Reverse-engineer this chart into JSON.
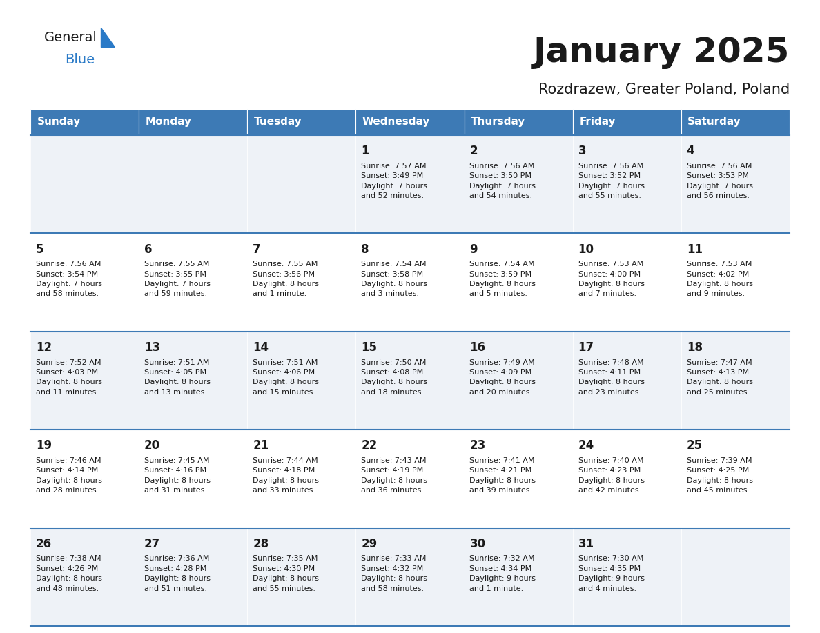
{
  "title": "January 2025",
  "subtitle": "Rozdrazew, Greater Poland, Poland",
  "header_bg": "#3d7ab5",
  "header_text_color": "#ffffff",
  "cell_bg_odd": "#eef2f7",
  "cell_bg_even": "#ffffff",
  "separator_color": "#3d7ab5",
  "text_color": "#1a1a1a",
  "day_headers": [
    "Sunday",
    "Monday",
    "Tuesday",
    "Wednesday",
    "Thursday",
    "Friday",
    "Saturday"
  ],
  "calendar": [
    [
      {
        "day": "",
        "info": ""
      },
      {
        "day": "",
        "info": ""
      },
      {
        "day": "",
        "info": ""
      },
      {
        "day": "1",
        "info": "Sunrise: 7:57 AM\nSunset: 3:49 PM\nDaylight: 7 hours\nand 52 minutes."
      },
      {
        "day": "2",
        "info": "Sunrise: 7:56 AM\nSunset: 3:50 PM\nDaylight: 7 hours\nand 54 minutes."
      },
      {
        "day": "3",
        "info": "Sunrise: 7:56 AM\nSunset: 3:52 PM\nDaylight: 7 hours\nand 55 minutes."
      },
      {
        "day": "4",
        "info": "Sunrise: 7:56 AM\nSunset: 3:53 PM\nDaylight: 7 hours\nand 56 minutes."
      }
    ],
    [
      {
        "day": "5",
        "info": "Sunrise: 7:56 AM\nSunset: 3:54 PM\nDaylight: 7 hours\nand 58 minutes."
      },
      {
        "day": "6",
        "info": "Sunrise: 7:55 AM\nSunset: 3:55 PM\nDaylight: 7 hours\nand 59 minutes."
      },
      {
        "day": "7",
        "info": "Sunrise: 7:55 AM\nSunset: 3:56 PM\nDaylight: 8 hours\nand 1 minute."
      },
      {
        "day": "8",
        "info": "Sunrise: 7:54 AM\nSunset: 3:58 PM\nDaylight: 8 hours\nand 3 minutes."
      },
      {
        "day": "9",
        "info": "Sunrise: 7:54 AM\nSunset: 3:59 PM\nDaylight: 8 hours\nand 5 minutes."
      },
      {
        "day": "10",
        "info": "Sunrise: 7:53 AM\nSunset: 4:00 PM\nDaylight: 8 hours\nand 7 minutes."
      },
      {
        "day": "11",
        "info": "Sunrise: 7:53 AM\nSunset: 4:02 PM\nDaylight: 8 hours\nand 9 minutes."
      }
    ],
    [
      {
        "day": "12",
        "info": "Sunrise: 7:52 AM\nSunset: 4:03 PM\nDaylight: 8 hours\nand 11 minutes."
      },
      {
        "day": "13",
        "info": "Sunrise: 7:51 AM\nSunset: 4:05 PM\nDaylight: 8 hours\nand 13 minutes."
      },
      {
        "day": "14",
        "info": "Sunrise: 7:51 AM\nSunset: 4:06 PM\nDaylight: 8 hours\nand 15 minutes."
      },
      {
        "day": "15",
        "info": "Sunrise: 7:50 AM\nSunset: 4:08 PM\nDaylight: 8 hours\nand 18 minutes."
      },
      {
        "day": "16",
        "info": "Sunrise: 7:49 AM\nSunset: 4:09 PM\nDaylight: 8 hours\nand 20 minutes."
      },
      {
        "day": "17",
        "info": "Sunrise: 7:48 AM\nSunset: 4:11 PM\nDaylight: 8 hours\nand 23 minutes."
      },
      {
        "day": "18",
        "info": "Sunrise: 7:47 AM\nSunset: 4:13 PM\nDaylight: 8 hours\nand 25 minutes."
      }
    ],
    [
      {
        "day": "19",
        "info": "Sunrise: 7:46 AM\nSunset: 4:14 PM\nDaylight: 8 hours\nand 28 minutes."
      },
      {
        "day": "20",
        "info": "Sunrise: 7:45 AM\nSunset: 4:16 PM\nDaylight: 8 hours\nand 31 minutes."
      },
      {
        "day": "21",
        "info": "Sunrise: 7:44 AM\nSunset: 4:18 PM\nDaylight: 8 hours\nand 33 minutes."
      },
      {
        "day": "22",
        "info": "Sunrise: 7:43 AM\nSunset: 4:19 PM\nDaylight: 8 hours\nand 36 minutes."
      },
      {
        "day": "23",
        "info": "Sunrise: 7:41 AM\nSunset: 4:21 PM\nDaylight: 8 hours\nand 39 minutes."
      },
      {
        "day": "24",
        "info": "Sunrise: 7:40 AM\nSunset: 4:23 PM\nDaylight: 8 hours\nand 42 minutes."
      },
      {
        "day": "25",
        "info": "Sunrise: 7:39 AM\nSunset: 4:25 PM\nDaylight: 8 hours\nand 45 minutes."
      }
    ],
    [
      {
        "day": "26",
        "info": "Sunrise: 7:38 AM\nSunset: 4:26 PM\nDaylight: 8 hours\nand 48 minutes."
      },
      {
        "day": "27",
        "info": "Sunrise: 7:36 AM\nSunset: 4:28 PM\nDaylight: 8 hours\nand 51 minutes."
      },
      {
        "day": "28",
        "info": "Sunrise: 7:35 AM\nSunset: 4:30 PM\nDaylight: 8 hours\nand 55 minutes."
      },
      {
        "day": "29",
        "info": "Sunrise: 7:33 AM\nSunset: 4:32 PM\nDaylight: 8 hours\nand 58 minutes."
      },
      {
        "day": "30",
        "info": "Sunrise: 7:32 AM\nSunset: 4:34 PM\nDaylight: 9 hours\nand 1 minute."
      },
      {
        "day": "31",
        "info": "Sunrise: 7:30 AM\nSunset: 4:35 PM\nDaylight: 9 hours\nand 4 minutes."
      },
      {
        "day": "",
        "info": ""
      }
    ]
  ],
  "logo_text_general": "General",
  "logo_text_blue": "Blue",
  "logo_color_general": "#1a1a1a",
  "logo_color_blue": "#2a7ac7",
  "logo_triangle_color": "#2a7ac7",
  "fig_width": 11.88,
  "fig_height": 9.18,
  "dpi": 100
}
